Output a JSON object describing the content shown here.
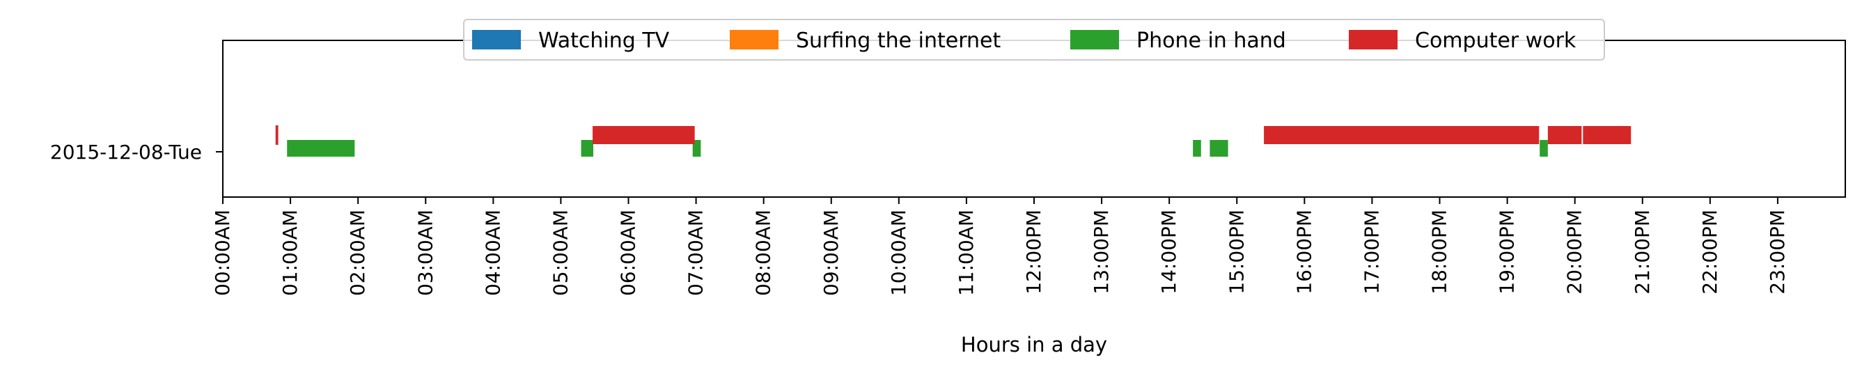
{
  "chart_data": {
    "type": "timeline",
    "title": "",
    "xlabel": "Hours in a day",
    "ylabel": "",
    "xlim": [
      0,
      24
    ],
    "x_ticks": [
      "00:00AM",
      "01:00AM",
      "02:00AM",
      "03:00AM",
      "04:00AM",
      "05:00AM",
      "06:00AM",
      "07:00AM",
      "08:00AM",
      "09:00AM",
      "10:00AM",
      "11:00AM",
      "12:00PM",
      "13:00PM",
      "14:00PM",
      "15:00PM",
      "16:00PM",
      "17:00PM",
      "18:00PM",
      "19:00PM",
      "20:00PM",
      "21:00PM",
      "22:00PM",
      "23:00PM"
    ],
    "categories": [
      "2015-12-08-Tue"
    ],
    "legend_position": "top-center",
    "grid": false,
    "series": [
      {
        "name": "Watching TV",
        "color": "#1f77b4",
        "intervals": []
      },
      {
        "name": "Surfing the internet",
        "color": "#ff7f0e",
        "intervals": []
      },
      {
        "name": "Phone in hand",
        "color": "#2ca02c",
        "intervals": [
          [
            0.95,
            1.95
          ],
          [
            5.3,
            5.48
          ],
          [
            6.95,
            7.07
          ],
          [
            14.35,
            14.47
          ],
          [
            14.6,
            14.87
          ],
          [
            19.48,
            19.6
          ]
        ]
      },
      {
        "name": "Computer work",
        "color": "#d62728",
        "intervals": [
          [
            0.78,
            0.82
          ],
          [
            5.47,
            6.98
          ],
          [
            15.4,
            19.47
          ],
          [
            19.6,
            20.1
          ],
          [
            20.12,
            20.83
          ]
        ]
      }
    ]
  }
}
